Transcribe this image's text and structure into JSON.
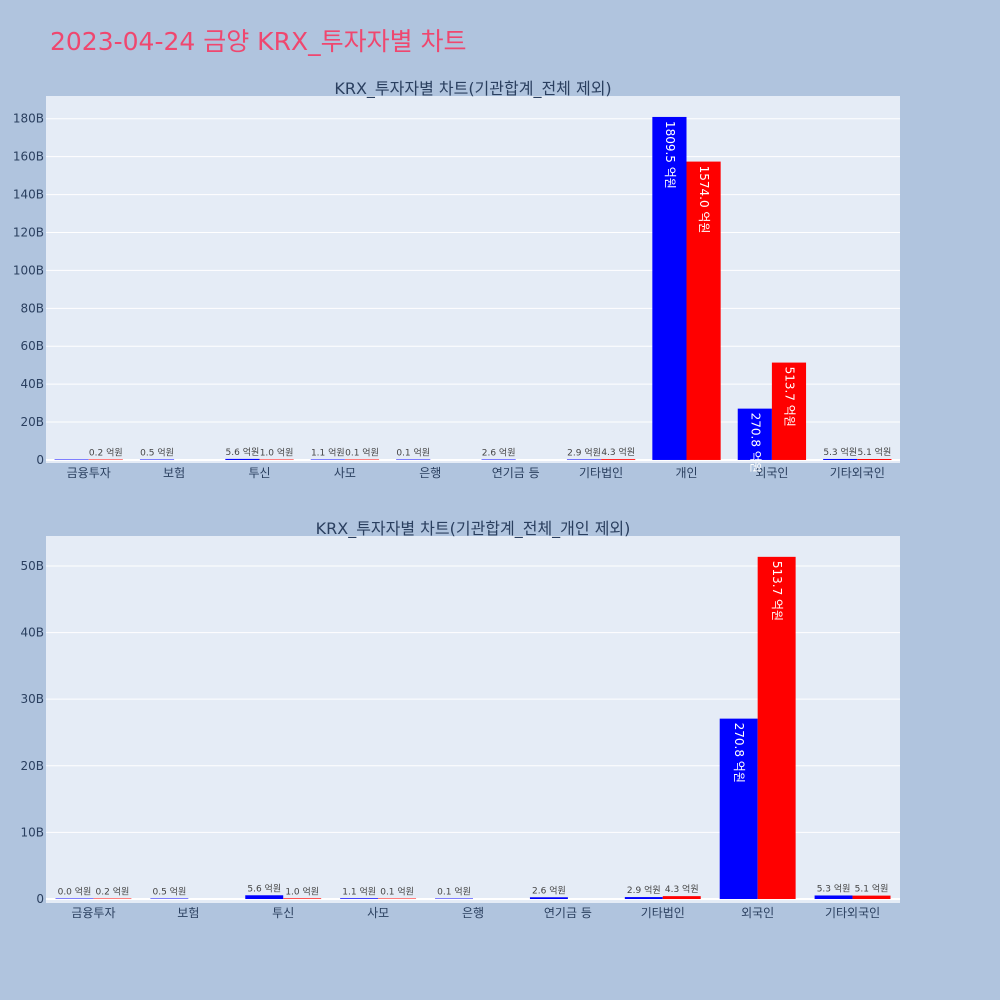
{
  "title": "2023-04-24 금양 KRX_투자자별 차트",
  "colors": {
    "buy": "#0000ff",
    "sell": "#ff0000",
    "plot_bg": "#e5ecf6",
    "page_bg": "#b0c4de",
    "title": "#ef476f"
  },
  "chart_data": [
    {
      "type": "bar",
      "title": "KRX_투자자별 차트(기관합계_전체 제외)",
      "ylim": [
        -1.6,
        192
      ],
      "yticks": [
        0,
        20,
        40,
        60,
        80,
        100,
        120,
        140,
        160,
        180
      ],
      "ytick_suffix": "B",
      "grid": true,
      "categories": [
        "금융투자",
        "보험",
        "투신",
        "사모",
        "은행",
        "연기금 등",
        "기타법인",
        "개인",
        "외국인",
        "기타외국인"
      ],
      "series": [
        {
          "values": [
            0.0,
            0.05,
            0.56,
            0.11,
            0.01,
            0.26,
            0.29,
            180.95,
            27.08,
            0.53
          ],
          "labels": [
            "",
            "0.5 억원",
            "5.6 억원",
            "1.1 억원",
            "0.1 억원",
            "2.6 억원",
            "2.9 억원",
            "1809.5 억원",
            "270.8 억원",
            "5.3 억원"
          ]
        },
        {
          "values": [
            0.02,
            null,
            0.1,
            0.01,
            null,
            null,
            0.43,
            157.4,
            51.37,
            0.51
          ],
          "labels": [
            "0.2 억원",
            "",
            "1.0 억원",
            "0.1 억원",
            "",
            "",
            "4.3 억원",
            "1574.0 억원",
            "513.7 억원",
            "5.1 억원"
          ]
        }
      ]
    },
    {
      "type": "bar",
      "title": "KRX_투자자별 차트(기관합계_전체_개인 제외)",
      "ylim": [
        -0.6,
        54.5
      ],
      "yticks": [
        0,
        10,
        20,
        30,
        40,
        50
      ],
      "ytick_suffix": "B",
      "grid": true,
      "categories": [
        "금융투자",
        "보험",
        "투신",
        "사모",
        "은행",
        "연기금 등",
        "기타법인",
        "외국인",
        "기타외국인"
      ],
      "series": [
        {
          "values": [
            0.0,
            0.05,
            0.56,
            0.11,
            0.01,
            0.26,
            0.29,
            27.08,
            0.53
          ],
          "labels": [
            "0.0 억원",
            "0.5 억원",
            "5.6 억원",
            "1.1 억원",
            "0.1 억원",
            "2.6 억원",
            "2.9 억원",
            "270.8 억원",
            "5.3 억원"
          ]
        },
        {
          "values": [
            0.02,
            null,
            0.1,
            0.01,
            null,
            null,
            0.43,
            51.37,
            0.51
          ],
          "labels": [
            "0.2 억원",
            "",
            "1.0 억원",
            "0.1 억원",
            "",
            "",
            "4.3 억원",
            "513.7 억원",
            "5.1 억원"
          ]
        }
      ]
    }
  ]
}
